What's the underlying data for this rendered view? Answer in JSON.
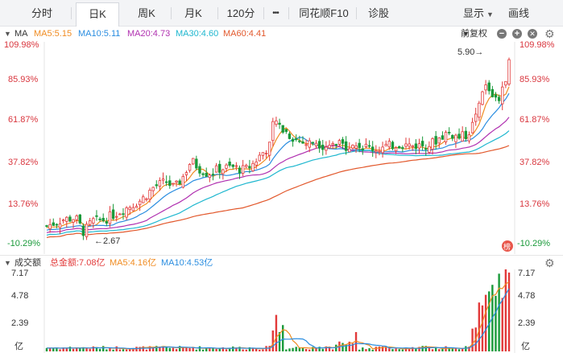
{
  "toolbar": {
    "tabs": [
      "分时",
      "日K",
      "周K",
      "月K",
      "120分",
      "•••",
      "同花顺F10",
      "诊股"
    ],
    "active_tab": "日K",
    "display_label": "显示",
    "draw_label": "画线"
  },
  "ma_legend": {
    "title": "MA",
    "items": [
      {
        "label": "MA5:5.15",
        "color": "#f08c22"
      },
      {
        "label": "MA10:5.11",
        "color": "#2a8de0"
      },
      {
        "label": "MA20:4.73",
        "color": "#b030b0"
      },
      {
        "label": "MA30:4.60",
        "color": "#1fb7cf"
      },
      {
        "label": "MA60:4.41",
        "color": "#e2582c"
      }
    ],
    "adjust_label": "前复权"
  },
  "price_axis": {
    "labels": [
      "109.98%",
      "85.93%",
      "61.87%",
      "37.82%",
      "13.76%",
      "-10.29%"
    ],
    "high_note": "5.90→",
    "low_note": "←2.67",
    "badge": "榜"
  },
  "volume_legend": {
    "title": "成交额",
    "items": [
      {
        "label": "总金额:7.08亿",
        "color": "#e23a3a"
      },
      {
        "label": "MA5:4.16亿",
        "color": "#f08c22"
      },
      {
        "label": "MA10:4.53亿",
        "color": "#2a8de0"
      }
    ]
  },
  "volume_axis": {
    "labels": [
      "7.17",
      "4.78",
      "2.39",
      "亿"
    ]
  },
  "colors": {
    "up": "#e23a3a",
    "down": "#1a9a3a",
    "axis_red": "#d9363e",
    "axis_green": "#1a9a3a"
  },
  "chart_data": {
    "type": "candlestick",
    "y_range_pct": [
      -10.29,
      109.98
    ],
    "low_pct": -10.29,
    "high_pct": 109.98,
    "low_price": 2.67,
    "high_price": 5.9,
    "volume_range": [
      0,
      7.17
    ],
    "volume_unit": "亿"
  }
}
